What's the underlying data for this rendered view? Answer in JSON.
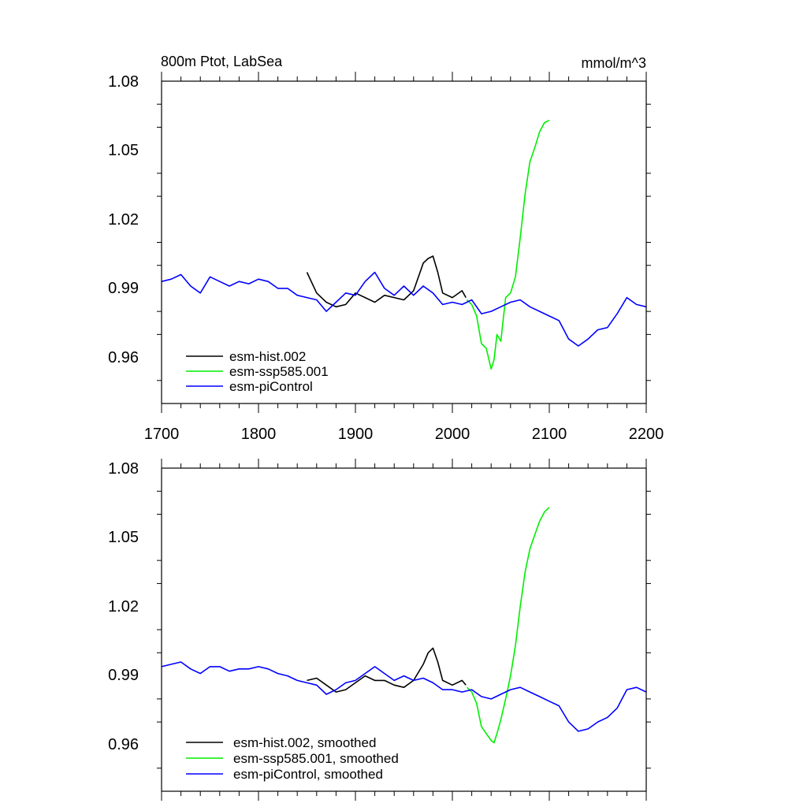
{
  "colors": {
    "hist": "#000000",
    "ssp": "#00ee00",
    "pi": "#0000ff"
  },
  "chart_data": [
    {
      "type": "line",
      "title": "800m Ptot, LabSea",
      "units": "mmol/m^3",
      "xlim": [
        1700,
        2200
      ],
      "ylim": [
        0.94,
        1.08
      ],
      "yticks": [
        "0.96",
        "0.99",
        "1.02",
        "1.05",
        "1.08"
      ],
      "xticks": [
        "1700",
        "1800",
        "1900",
        "2000",
        "2100",
        "2200"
      ],
      "legend_position": "bottom-left",
      "series": [
        {
          "name": "esm-hist.002",
          "color_key": "hist",
          "x": [
            1850,
            1860,
            1870,
            1880,
            1890,
            1900,
            1910,
            1920,
            1930,
            1940,
            1950,
            1960,
            1970,
            1975,
            1980,
            1985,
            1990,
            2000,
            2010,
            2014
          ],
          "y": [
            0.997,
            0.988,
            0.984,
            0.982,
            0.983,
            0.988,
            0.986,
            0.984,
            0.987,
            0.986,
            0.985,
            0.989,
            1.001,
            1.003,
            1.004,
            0.997,
            0.988,
            0.986,
            0.989,
            0.986
          ]
        },
        {
          "name": "esm-ssp585.001",
          "color_key": "ssp",
          "x": [
            2015,
            2020,
            2025,
            2030,
            2035,
            2040,
            2043,
            2046,
            2050,
            2055,
            2060,
            2065,
            2070,
            2075,
            2080,
            2085,
            2090,
            2095,
            2100
          ],
          "y": [
            0.985,
            0.983,
            0.978,
            0.966,
            0.964,
            0.955,
            0.959,
            0.97,
            0.967,
            0.986,
            0.988,
            0.995,
            1.012,
            1.031,
            1.045,
            1.051,
            1.058,
            1.062,
            1.063
          ]
        },
        {
          "name": "esm-piControl",
          "color_key": "pi",
          "x": [
            1700,
            1710,
            1720,
            1730,
            1740,
            1750,
            1760,
            1770,
            1780,
            1790,
            1800,
            1810,
            1820,
            1830,
            1840,
            1850,
            1860,
            1870,
            1880,
            1890,
            1900,
            1910,
            1920,
            1930,
            1940,
            1950,
            1960,
            1970,
            1980,
            1990,
            2000,
            2010,
            2020,
            2030,
            2040,
            2050,
            2060,
            2070,
            2080,
            2090,
            2100,
            2110,
            2120,
            2130,
            2140,
            2150,
            2160,
            2170,
            2180,
            2190,
            2200
          ],
          "y": [
            0.993,
            0.994,
            0.996,
            0.991,
            0.988,
            0.995,
            0.993,
            0.991,
            0.993,
            0.992,
            0.994,
            0.993,
            0.99,
            0.99,
            0.987,
            0.986,
            0.985,
            0.98,
            0.984,
            0.988,
            0.987,
            0.993,
            0.997,
            0.99,
            0.987,
            0.991,
            0.987,
            0.991,
            0.988,
            0.983,
            0.984,
            0.983,
            0.985,
            0.979,
            0.98,
            0.982,
            0.984,
            0.985,
            0.982,
            0.98,
            0.978,
            0.976,
            0.968,
            0.965,
            0.968,
            0.972,
            0.973,
            0.979,
            0.986,
            0.983,
            0.982
          ]
        }
      ]
    },
    {
      "type": "line",
      "xlim": [
        1700,
        2200
      ],
      "ylim": [
        0.94,
        1.08
      ],
      "yticks": [
        "0.96",
        "0.99",
        "1.02",
        "1.05",
        "1.08"
      ],
      "legend_position": "bottom-left",
      "series": [
        {
          "name": "esm-hist.002, smoothed",
          "color_key": "hist",
          "x": [
            1850,
            1860,
            1870,
            1880,
            1890,
            1900,
            1910,
            1920,
            1930,
            1940,
            1950,
            1960,
            1970,
            1975,
            1980,
            1985,
            1990,
            2000,
            2010,
            2014
          ],
          "y": [
            0.988,
            0.989,
            0.986,
            0.983,
            0.984,
            0.987,
            0.99,
            0.988,
            0.988,
            0.986,
            0.985,
            0.988,
            0.995,
            1.0,
            1.002,
            0.996,
            0.988,
            0.986,
            0.988,
            0.986
          ]
        },
        {
          "name": "esm-ssp585.001, smoothed",
          "color_key": "ssp",
          "x": [
            2015,
            2020,
            2025,
            2030,
            2035,
            2040,
            2043,
            2046,
            2050,
            2055,
            2060,
            2065,
            2070,
            2075,
            2080,
            2085,
            2090,
            2095,
            2100
          ],
          "y": [
            0.985,
            0.983,
            0.978,
            0.968,
            0.965,
            0.962,
            0.961,
            0.965,
            0.971,
            0.98,
            0.99,
            1.003,
            1.02,
            1.035,
            1.045,
            1.051,
            1.057,
            1.061,
            1.063
          ]
        },
        {
          "name": "esm-piControl, smoothed",
          "color_key": "pi",
          "x": [
            1700,
            1710,
            1720,
            1730,
            1740,
            1750,
            1760,
            1770,
            1780,
            1790,
            1800,
            1810,
            1820,
            1830,
            1840,
            1850,
            1860,
            1870,
            1880,
            1890,
            1900,
            1910,
            1920,
            1930,
            1940,
            1950,
            1960,
            1970,
            1980,
            1990,
            2000,
            2010,
            2020,
            2030,
            2040,
            2050,
            2060,
            2070,
            2080,
            2090,
            2100,
            2110,
            2120,
            2130,
            2140,
            2150,
            2160,
            2170,
            2180,
            2190,
            2200
          ],
          "y": [
            0.994,
            0.995,
            0.996,
            0.993,
            0.991,
            0.994,
            0.994,
            0.992,
            0.993,
            0.993,
            0.994,
            0.993,
            0.991,
            0.99,
            0.988,
            0.987,
            0.986,
            0.982,
            0.984,
            0.987,
            0.988,
            0.991,
            0.994,
            0.991,
            0.988,
            0.99,
            0.988,
            0.989,
            0.987,
            0.984,
            0.984,
            0.983,
            0.984,
            0.981,
            0.98,
            0.982,
            0.984,
            0.985,
            0.983,
            0.981,
            0.979,
            0.977,
            0.97,
            0.966,
            0.967,
            0.97,
            0.972,
            0.976,
            0.984,
            0.985,
            0.983
          ]
        }
      ]
    }
  ]
}
